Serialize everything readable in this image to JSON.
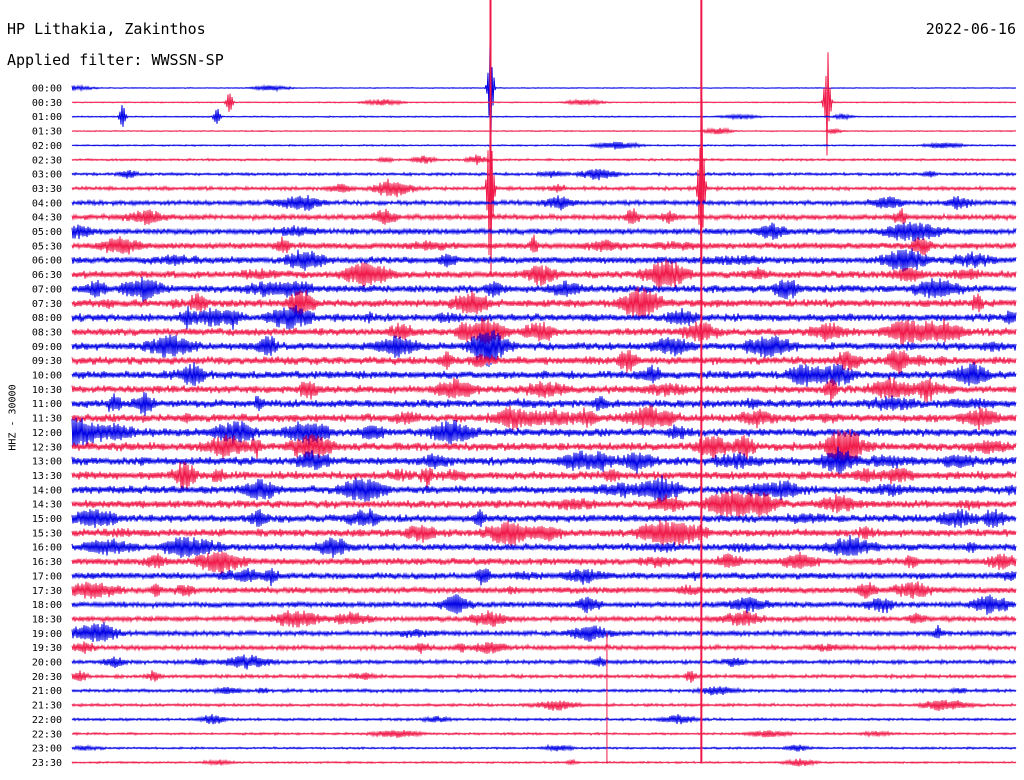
{
  "header": {
    "station": "HP Lithakia, Zakinthos",
    "date": "2022-06-16",
    "filter": "Applied filter: WWSSN-SP",
    "channel": "HHZ - 30000"
  },
  "colors": {
    "trace_a": "#0000e6",
    "trace_b": "#f01848"
  },
  "chart_data": {
    "type": "line",
    "title": "HP Lithakia, Zakinthos",
    "subtitle": "Applied filter: WWSSN-SP",
    "ylabel": "HHZ - 30000",
    "rows": [
      "00:00",
      "00:30",
      "01:00",
      "01:30",
      "02:00",
      "02:30",
      "03:00",
      "03:30",
      "04:00",
      "04:30",
      "05:00",
      "05:30",
      "06:00",
      "06:30",
      "07:00",
      "07:30",
      "08:00",
      "08:30",
      "09:00",
      "09:30",
      "10:00",
      "10:30",
      "11:00",
      "11:30",
      "12:00",
      "12:30",
      "13:00",
      "13:30",
      "14:00",
      "14:30",
      "15:00",
      "15:30",
      "16:00",
      "16:30",
      "17:00",
      "17:30",
      "18:00",
      "18:30",
      "19:00",
      "19:30",
      "20:00",
      "20:30",
      "21:00",
      "21:30",
      "22:00",
      "22:30",
      "23:00",
      "23:30"
    ],
    "row_minutes": 30,
    "noise_profile": [
      0.5,
      0.6,
      0.7,
      0.6,
      0.8,
      1.2,
      1.6,
      2.0,
      2.6,
      3.0,
      3.4,
      3.7,
      4.0,
      4.2,
      4.4,
      4.5,
      4.5,
      4.4,
      4.5,
      4.6,
      4.6,
      4.5,
      4.6,
      4.7,
      4.8,
      4.8,
      4.8,
      4.7,
      4.6,
      4.6,
      4.5,
      4.4,
      4.2,
      4.0,
      3.8,
      3.6,
      3.2,
      3.0,
      2.8,
      2.6,
      2.2,
      2.0,
      1.8,
      1.6,
      1.4,
      1.2,
      1.1,
      1.0
    ],
    "spikes": [
      {
        "row": 0,
        "minute": 13.3,
        "amp": 58
      },
      {
        "row": 1,
        "minute": 24.0,
        "amp": 70
      },
      {
        "row": 7,
        "minute": 13.3,
        "amp": 120
      },
      {
        "row": 7,
        "minute": 20.0,
        "amp": 120
      },
      {
        "row": 1,
        "minute": 5.0,
        "amp": 18
      },
      {
        "row": 2,
        "minute": 1.6,
        "amp": 16
      },
      {
        "row": 2,
        "minute": 4.6,
        "amp": 12
      }
    ]
  }
}
